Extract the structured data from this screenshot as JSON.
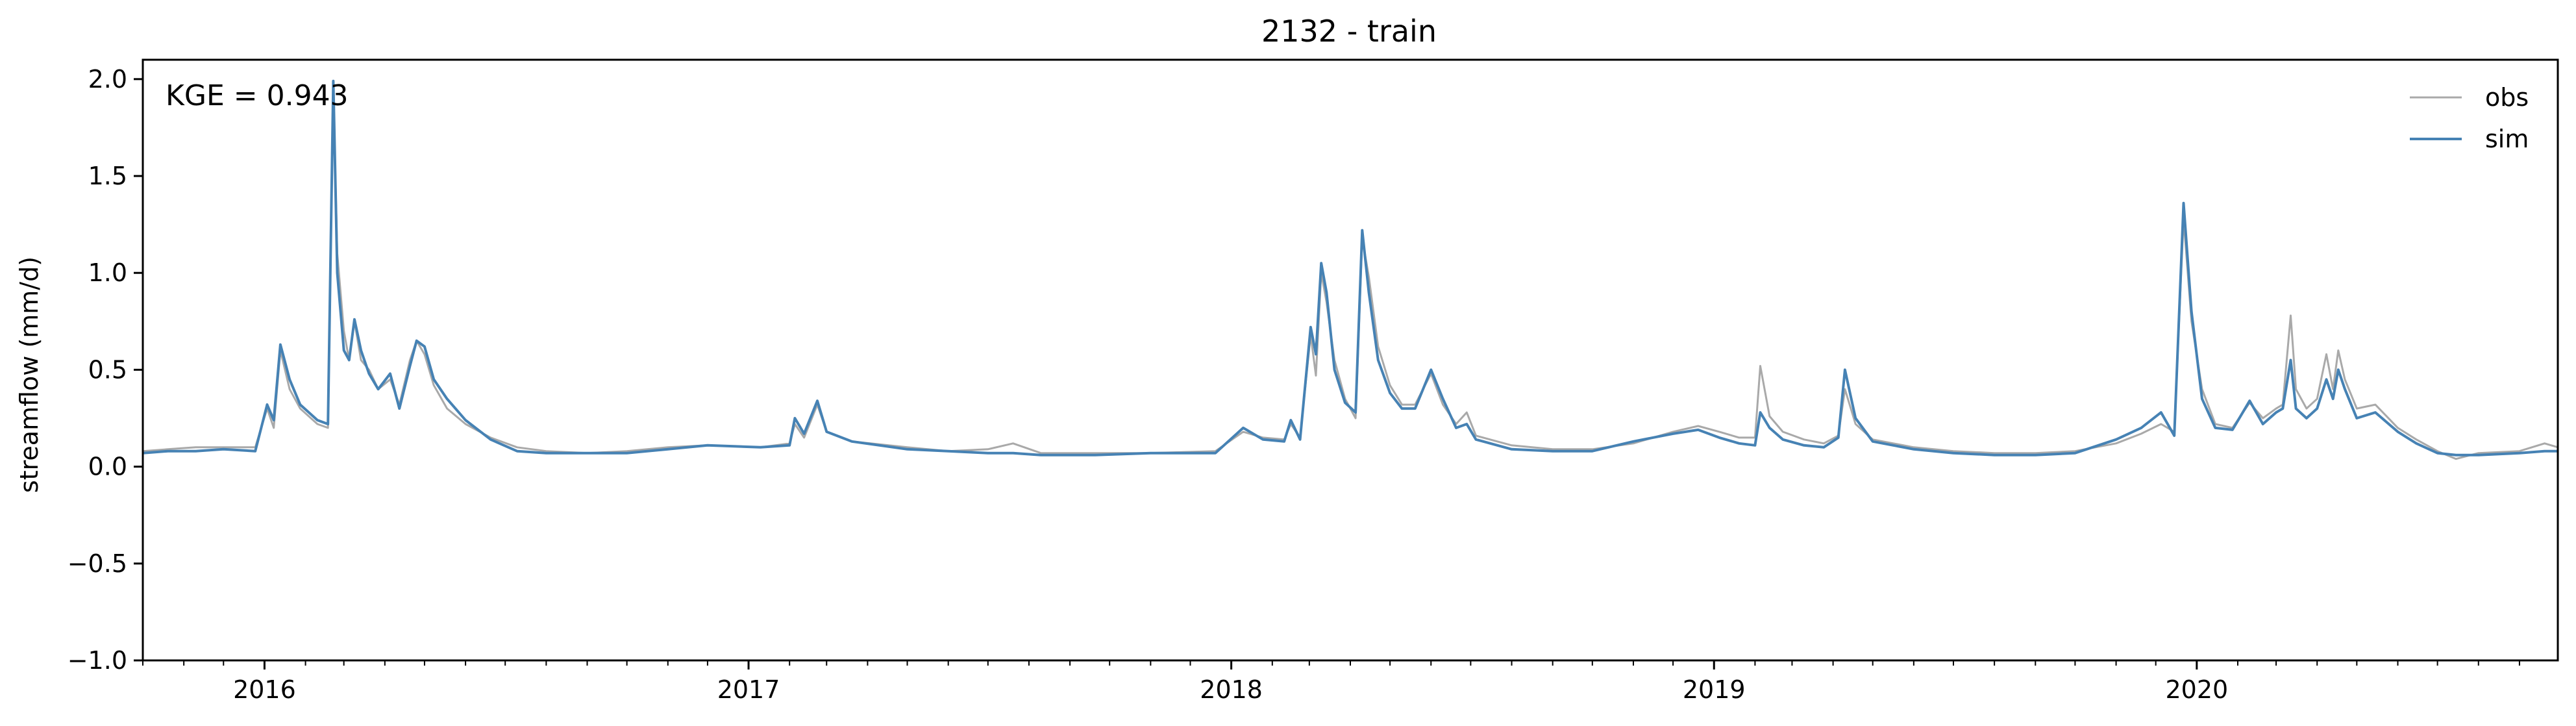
{
  "chart_data": {
    "type": "line",
    "title": "2132 - train",
    "xlabel": "",
    "ylabel": "streamflow (mm/d)",
    "annotation": "KGE = 0.943",
    "xlim": [
      "2015-10-01",
      "2020-09-30"
    ],
    "ylim": [
      -1.0,
      2.1
    ],
    "yticks": [
      -1.0,
      -0.5,
      0.0,
      0.5,
      1.0,
      1.5,
      2.0
    ],
    "ytick_labels": [
      "−1.0",
      "−0.5",
      "0.0",
      "0.5",
      "1.0",
      "1.5",
      "2.0"
    ],
    "xticks": [
      "2016-01-01",
      "2017-01-01",
      "2018-01-01",
      "2019-01-01",
      "2020-01-01"
    ],
    "xtick_labels": [
      "2016",
      "2017",
      "2018",
      "2019",
      "2020"
    ],
    "grid": false,
    "legend_position": "top-right",
    "series": [
      {
        "name": "obs",
        "color": "#a9a9a9",
        "points": [
          [
            "2015-10-01",
            0.08
          ],
          [
            "2015-10-20",
            0.09
          ],
          [
            "2015-11-10",
            0.1
          ],
          [
            "2015-12-01",
            0.1
          ],
          [
            "2015-12-25",
            0.1
          ],
          [
            "2016-01-03",
            0.3
          ],
          [
            "2016-01-08",
            0.2
          ],
          [
            "2016-01-13",
            0.6
          ],
          [
            "2016-01-20",
            0.4
          ],
          [
            "2016-01-28",
            0.3
          ],
          [
            "2016-02-10",
            0.22
          ],
          [
            "2016-02-18",
            0.2
          ],
          [
            "2016-02-22",
            1.95
          ],
          [
            "2016-02-25",
            1.1
          ],
          [
            "2016-03-01",
            0.7
          ],
          [
            "2016-03-05",
            0.55
          ],
          [
            "2016-03-09",
            0.75
          ],
          [
            "2016-03-14",
            0.55
          ],
          [
            "2016-03-20",
            0.5
          ],
          [
            "2016-03-27",
            0.4
          ],
          [
            "2016-04-05",
            0.45
          ],
          [
            "2016-04-12",
            0.32
          ],
          [
            "2016-04-20",
            0.55
          ],
          [
            "2016-04-25",
            0.65
          ],
          [
            "2016-05-01",
            0.58
          ],
          [
            "2016-05-08",
            0.42
          ],
          [
            "2016-05-18",
            0.3
          ],
          [
            "2016-06-01",
            0.22
          ],
          [
            "2016-06-20",
            0.15
          ],
          [
            "2016-07-10",
            0.1
          ],
          [
            "2016-08-01",
            0.08
          ],
          [
            "2016-09-01",
            0.07
          ],
          [
            "2016-10-01",
            0.08
          ],
          [
            "2016-11-01",
            0.1
          ],
          [
            "2016-12-01",
            0.11
          ],
          [
            "2017-01-10",
            0.1
          ],
          [
            "2017-02-01",
            0.12
          ],
          [
            "2017-02-05",
            0.22
          ],
          [
            "2017-02-12",
            0.15
          ],
          [
            "2017-02-22",
            0.32
          ],
          [
            "2017-03-01",
            0.18
          ],
          [
            "2017-03-20",
            0.13
          ],
          [
            "2017-05-01",
            0.1
          ],
          [
            "2017-06-01",
            0.08
          ],
          [
            "2017-07-01",
            0.09
          ],
          [
            "2017-07-20",
            0.12
          ],
          [
            "2017-08-10",
            0.07
          ],
          [
            "2017-09-20",
            0.07
          ],
          [
            "2017-11-01",
            0.07
          ],
          [
            "2017-12-20",
            0.08
          ],
          [
            "2018-01-10",
            0.18
          ],
          [
            "2018-01-25",
            0.15
          ],
          [
            "2018-02-10",
            0.14
          ],
          [
            "2018-02-15",
            0.22
          ],
          [
            "2018-02-22",
            0.15
          ],
          [
            "2018-03-02",
            0.68
          ],
          [
            "2018-03-06",
            0.47
          ],
          [
            "2018-03-10",
            1.0
          ],
          [
            "2018-03-14",
            0.85
          ],
          [
            "2018-03-20",
            0.55
          ],
          [
            "2018-03-28",
            0.35
          ],
          [
            "2018-04-05",
            0.25
          ],
          [
            "2018-04-10",
            1.18
          ],
          [
            "2018-04-15",
            0.98
          ],
          [
            "2018-04-22",
            0.62
          ],
          [
            "2018-05-01",
            0.42
          ],
          [
            "2018-05-10",
            0.32
          ],
          [
            "2018-05-20",
            0.32
          ],
          [
            "2018-06-01",
            0.48
          ],
          [
            "2018-06-10",
            0.32
          ],
          [
            "2018-06-20",
            0.22
          ],
          [
            "2018-06-28",
            0.28
          ],
          [
            "2018-07-05",
            0.16
          ],
          [
            "2018-08-01",
            0.11
          ],
          [
            "2018-09-01",
            0.09
          ],
          [
            "2018-10-01",
            0.09
          ],
          [
            "2018-11-01",
            0.12
          ],
          [
            "2018-12-01",
            0.18
          ],
          [
            "2018-12-20",
            0.21
          ],
          [
            "2019-01-05",
            0.18
          ],
          [
            "2019-01-20",
            0.15
          ],
          [
            "2019-02-01",
            0.15
          ],
          [
            "2019-02-05",
            0.52
          ],
          [
            "2019-02-12",
            0.26
          ],
          [
            "2019-02-22",
            0.18
          ],
          [
            "2019-03-10",
            0.14
          ],
          [
            "2019-03-25",
            0.12
          ],
          [
            "2019-04-05",
            0.16
          ],
          [
            "2019-04-10",
            0.4
          ],
          [
            "2019-04-18",
            0.22
          ],
          [
            "2019-05-01",
            0.14
          ],
          [
            "2019-06-01",
            0.1
          ],
          [
            "2019-07-01",
            0.08
          ],
          [
            "2019-08-01",
            0.07
          ],
          [
            "2019-09-01",
            0.07
          ],
          [
            "2019-10-01",
            0.08
          ],
          [
            "2019-11-01",
            0.12
          ],
          [
            "2019-11-20",
            0.17
          ],
          [
            "2019-12-05",
            0.22
          ],
          [
            "2019-12-15",
            0.18
          ],
          [
            "2019-12-22",
            1.28
          ],
          [
            "2019-12-28",
            0.75
          ],
          [
            "2020-01-05",
            0.4
          ],
          [
            "2020-01-15",
            0.22
          ],
          [
            "2020-01-28",
            0.2
          ],
          [
            "2020-02-10",
            0.33
          ],
          [
            "2020-02-20",
            0.25
          ],
          [
            "2020-03-01",
            0.3
          ],
          [
            "2020-03-06",
            0.32
          ],
          [
            "2020-03-12",
            0.78
          ],
          [
            "2020-03-16",
            0.4
          ],
          [
            "2020-03-24",
            0.3
          ],
          [
            "2020-04-01",
            0.35
          ],
          [
            "2020-04-08",
            0.58
          ],
          [
            "2020-04-13",
            0.4
          ],
          [
            "2020-04-17",
            0.6
          ],
          [
            "2020-04-22",
            0.45
          ],
          [
            "2020-05-01",
            0.3
          ],
          [
            "2020-05-15",
            0.32
          ],
          [
            "2020-06-01",
            0.2
          ],
          [
            "2020-06-15",
            0.14
          ],
          [
            "2020-07-01",
            0.08
          ],
          [
            "2020-07-15",
            0.04
          ],
          [
            "2020-08-01",
            0.07
          ],
          [
            "2020-09-01",
            0.08
          ],
          [
            "2020-09-20",
            0.12
          ],
          [
            "2020-09-30",
            0.1
          ]
        ]
      },
      {
        "name": "sim",
        "color": "#4682b4",
        "points": [
          [
            "2015-10-01",
            0.07
          ],
          [
            "2015-10-20",
            0.08
          ],
          [
            "2015-11-10",
            0.08
          ],
          [
            "2015-12-01",
            0.09
          ],
          [
            "2015-12-25",
            0.08
          ],
          [
            "2016-01-03",
            0.32
          ],
          [
            "2016-01-08",
            0.24
          ],
          [
            "2016-01-13",
            0.63
          ],
          [
            "2016-01-20",
            0.45
          ],
          [
            "2016-01-28",
            0.32
          ],
          [
            "2016-02-10",
            0.24
          ],
          [
            "2016-02-18",
            0.22
          ],
          [
            "2016-02-22",
            1.99
          ],
          [
            "2016-02-25",
            1.0
          ],
          [
            "2016-03-01",
            0.6
          ],
          [
            "2016-03-05",
            0.55
          ],
          [
            "2016-03-09",
            0.76
          ],
          [
            "2016-03-14",
            0.6
          ],
          [
            "2016-03-20",
            0.48
          ],
          [
            "2016-03-27",
            0.4
          ],
          [
            "2016-04-05",
            0.48
          ],
          [
            "2016-04-12",
            0.3
          ],
          [
            "2016-04-20",
            0.52
          ],
          [
            "2016-04-25",
            0.65
          ],
          [
            "2016-05-01",
            0.62
          ],
          [
            "2016-05-08",
            0.45
          ],
          [
            "2016-05-18",
            0.35
          ],
          [
            "2016-06-01",
            0.24
          ],
          [
            "2016-06-20",
            0.14
          ],
          [
            "2016-07-10",
            0.08
          ],
          [
            "2016-08-01",
            0.07
          ],
          [
            "2016-09-01",
            0.07
          ],
          [
            "2016-10-01",
            0.07
          ],
          [
            "2016-11-01",
            0.09
          ],
          [
            "2016-12-01",
            0.11
          ],
          [
            "2017-01-10",
            0.1
          ],
          [
            "2017-02-01",
            0.11
          ],
          [
            "2017-02-05",
            0.25
          ],
          [
            "2017-02-12",
            0.17
          ],
          [
            "2017-02-22",
            0.34
          ],
          [
            "2017-03-01",
            0.18
          ],
          [
            "2017-03-20",
            0.13
          ],
          [
            "2017-05-01",
            0.09
          ],
          [
            "2017-06-01",
            0.08
          ],
          [
            "2017-07-01",
            0.07
          ],
          [
            "2017-07-20",
            0.07
          ],
          [
            "2017-08-10",
            0.06
          ],
          [
            "2017-09-20",
            0.06
          ],
          [
            "2017-11-01",
            0.07
          ],
          [
            "2017-12-20",
            0.07
          ],
          [
            "2018-01-10",
            0.2
          ],
          [
            "2018-01-25",
            0.14
          ],
          [
            "2018-02-10",
            0.13
          ],
          [
            "2018-02-15",
            0.24
          ],
          [
            "2018-02-22",
            0.14
          ],
          [
            "2018-03-02",
            0.72
          ],
          [
            "2018-03-06",
            0.58
          ],
          [
            "2018-03-10",
            1.05
          ],
          [
            "2018-03-14",
            0.9
          ],
          [
            "2018-03-20",
            0.5
          ],
          [
            "2018-03-28",
            0.33
          ],
          [
            "2018-04-05",
            0.28
          ],
          [
            "2018-04-10",
            1.22
          ],
          [
            "2018-04-15",
            0.9
          ],
          [
            "2018-04-22",
            0.55
          ],
          [
            "2018-05-01",
            0.38
          ],
          [
            "2018-05-10",
            0.3
          ],
          [
            "2018-05-20",
            0.3
          ],
          [
            "2018-06-01",
            0.5
          ],
          [
            "2018-06-10",
            0.35
          ],
          [
            "2018-06-20",
            0.2
          ],
          [
            "2018-06-28",
            0.22
          ],
          [
            "2018-07-05",
            0.14
          ],
          [
            "2018-08-01",
            0.09
          ],
          [
            "2018-09-01",
            0.08
          ],
          [
            "2018-10-01",
            0.08
          ],
          [
            "2018-11-01",
            0.13
          ],
          [
            "2018-12-01",
            0.17
          ],
          [
            "2018-12-20",
            0.19
          ],
          [
            "2019-01-05",
            0.15
          ],
          [
            "2019-01-20",
            0.12
          ],
          [
            "2019-02-01",
            0.11
          ],
          [
            "2019-02-05",
            0.28
          ],
          [
            "2019-02-12",
            0.2
          ],
          [
            "2019-02-22",
            0.14
          ],
          [
            "2019-03-10",
            0.11
          ],
          [
            "2019-03-25",
            0.1
          ],
          [
            "2019-04-05",
            0.15
          ],
          [
            "2019-04-10",
            0.5
          ],
          [
            "2019-04-18",
            0.25
          ],
          [
            "2019-05-01",
            0.13
          ],
          [
            "2019-06-01",
            0.09
          ],
          [
            "2019-07-01",
            0.07
          ],
          [
            "2019-08-01",
            0.06
          ],
          [
            "2019-09-01",
            0.06
          ],
          [
            "2019-10-01",
            0.07
          ],
          [
            "2019-11-01",
            0.14
          ],
          [
            "2019-11-20",
            0.2
          ],
          [
            "2019-12-05",
            0.28
          ],
          [
            "2019-12-15",
            0.16
          ],
          [
            "2019-12-22",
            1.36
          ],
          [
            "2019-12-28",
            0.8
          ],
          [
            "2020-01-05",
            0.35
          ],
          [
            "2020-01-15",
            0.2
          ],
          [
            "2020-01-28",
            0.19
          ],
          [
            "2020-02-10",
            0.34
          ],
          [
            "2020-02-20",
            0.22
          ],
          [
            "2020-03-01",
            0.28
          ],
          [
            "2020-03-06",
            0.3
          ],
          [
            "2020-03-12",
            0.55
          ],
          [
            "2020-03-16",
            0.3
          ],
          [
            "2020-03-24",
            0.25
          ],
          [
            "2020-04-01",
            0.3
          ],
          [
            "2020-04-08",
            0.45
          ],
          [
            "2020-04-13",
            0.35
          ],
          [
            "2020-04-17",
            0.5
          ],
          [
            "2020-04-22",
            0.4
          ],
          [
            "2020-05-01",
            0.25
          ],
          [
            "2020-05-15",
            0.28
          ],
          [
            "2020-06-01",
            0.18
          ],
          [
            "2020-06-15",
            0.12
          ],
          [
            "2020-07-01",
            0.07
          ],
          [
            "2020-07-15",
            0.06
          ],
          [
            "2020-08-01",
            0.06
          ],
          [
            "2020-09-01",
            0.07
          ],
          [
            "2020-09-20",
            0.08
          ],
          [
            "2020-09-30",
            0.08
          ]
        ]
      }
    ]
  }
}
